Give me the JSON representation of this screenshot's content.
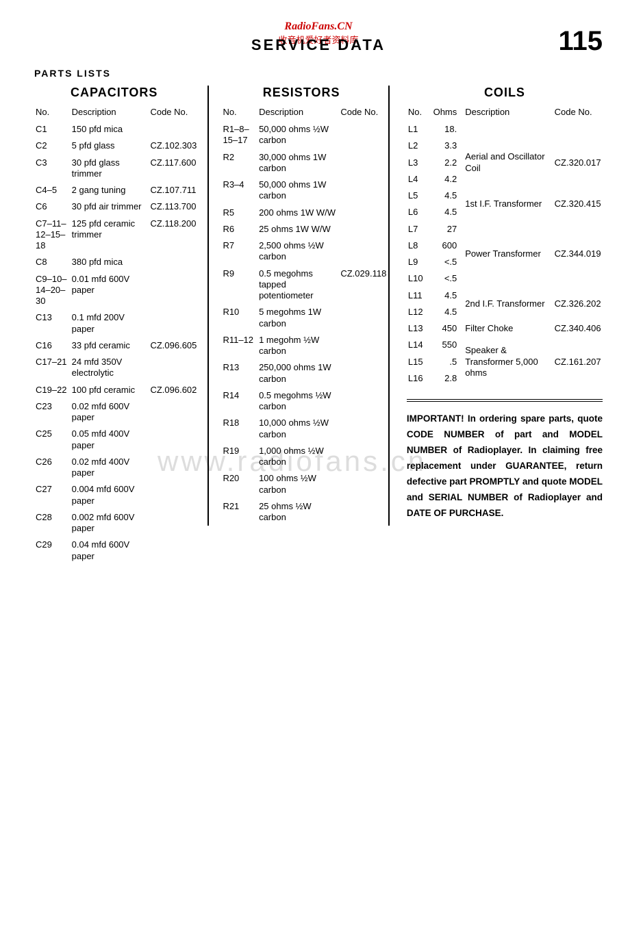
{
  "header": {
    "radiofans": "RadioFans.CN",
    "chinese": "收音机爱好者资料库",
    "service": "SERVICE DATA",
    "pagenum": "115",
    "watermark": "www.radiofans.cn"
  },
  "sectiontitle": "PARTS LISTS",
  "capheader": "CAPACITORS",
  "resheader": "RESISTORS",
  "coilheader": "COILS",
  "col_no": "No.",
  "col_desc": "Description",
  "col_code": "Code No.",
  "col_ohm": "Ohms",
  "capacitors": [
    {
      "no": "C1",
      "desc": "150 pfd mica",
      "code": ""
    },
    {
      "no": "C2",
      "desc": "5 pfd glass",
      "code": "CZ.102.303"
    },
    {
      "no": "C3",
      "desc": "30 pfd glass trimmer",
      "code": "CZ.117.600"
    },
    {
      "no": "C4–5",
      "desc": "2 gang tuning",
      "code": "CZ.107.711"
    },
    {
      "no": "C6",
      "desc": "30 pfd air trimmer",
      "code": "CZ.113.700"
    },
    {
      "no": "C7–11–12–15–18",
      "desc": "125 pfd ceramic trimmer",
      "code": "CZ.118.200"
    },
    {
      "no": "C8",
      "desc": "380 pfd mica",
      "code": ""
    },
    {
      "no": "C9–10–14–20–30",
      "desc": "0.01 mfd 600V paper",
      "code": ""
    },
    {
      "no": "C13",
      "desc": "0.1 mfd 200V paper",
      "code": ""
    },
    {
      "no": "C16",
      "desc": "33 pfd ceramic",
      "code": "CZ.096.605"
    },
    {
      "no": "C17–21",
      "desc": "24 mfd 350V electrolytic",
      "code": ""
    },
    {
      "no": "C19–22",
      "desc": "100 pfd ceramic",
      "code": "CZ.096.602"
    },
    {
      "no": "C23",
      "desc": "0.02 mfd 600V paper",
      "code": ""
    },
    {
      "no": "C25",
      "desc": "0.05 mfd 400V paper",
      "code": ""
    },
    {
      "no": "C26",
      "desc": "0.02 mfd 400V paper",
      "code": ""
    },
    {
      "no": "C27",
      "desc": "0.004 mfd 600V paper",
      "code": ""
    },
    {
      "no": "C28",
      "desc": "0.002 mfd 600V paper",
      "code": ""
    },
    {
      "no": "C29",
      "desc": "0.04 mfd 600V paper",
      "code": ""
    }
  ],
  "resistors": [
    {
      "no": "R1–8–15–17",
      "desc": "50,000 ohms ½W carbon",
      "code": ""
    },
    {
      "no": "R2",
      "desc": "30,000 ohms 1W carbon",
      "code": ""
    },
    {
      "no": "R3–4",
      "desc": "50,000 ohms 1W carbon",
      "code": ""
    },
    {
      "no": "R5",
      "desc": "200 ohms 1W W/W",
      "code": ""
    },
    {
      "no": "R6",
      "desc": "25 ohms 1W W/W",
      "code": ""
    },
    {
      "no": "R7",
      "desc": "2,500 ohms ½W carbon",
      "code": ""
    },
    {
      "no": "R9",
      "desc": "0.5 megohms tapped potentiometer",
      "code": "CZ.029.118"
    },
    {
      "no": "R10",
      "desc": "5 megohms 1W carbon",
      "code": ""
    },
    {
      "no": "R11–12",
      "desc": "1 megohm ½W carbon",
      "code": ""
    },
    {
      "no": "R13",
      "desc": "250,000 ohms 1W carbon",
      "code": ""
    },
    {
      "no": "R14",
      "desc": "0.5 megohms ½W carbon",
      "code": ""
    },
    {
      "no": "R18",
      "desc": "10,000 ohms ½W carbon",
      "code": ""
    },
    {
      "no": "R19",
      "desc": "1,000 ohms ½W carbon",
      "code": ""
    },
    {
      "no": "R20",
      "desc": "100 ohms ½W carbon",
      "code": ""
    },
    {
      "no": "R21",
      "desc": "25 ohms ½W carbon",
      "code": ""
    }
  ],
  "coils": [
    {
      "no": "L1",
      "ohm": "18.",
      "desc": "",
      "code": ""
    },
    {
      "no": "L2",
      "ohm": "3.3",
      "desc": "Aerial and Oscillator Coil",
      "code": "CZ.320.017",
      "braceTop": true
    },
    {
      "no": "L3",
      "ohm": "2.2",
      "desc": "",
      "code": ""
    },
    {
      "no": "L4",
      "ohm": "4.2",
      "desc": "",
      "code": "",
      "braceBot": true
    },
    {
      "no": "L5",
      "ohm": "4.5",
      "desc": "1st I.F. Transformer",
      "code": "CZ.320.415",
      "braceTop": true
    },
    {
      "no": "L6",
      "ohm": "4.5",
      "desc": "",
      "code": "",
      "braceBot": true
    },
    {
      "no": "L7",
      "ohm": "27",
      "desc": "",
      "code": "",
      "braceTop": true
    },
    {
      "no": "L8",
      "ohm": "600",
      "desc": "Power Transformer",
      "code": "CZ.344.019"
    },
    {
      "no": "L9",
      "ohm": "<.5",
      "desc": "",
      "code": ""
    },
    {
      "no": "L10",
      "ohm": "<.5",
      "desc": "",
      "code": "",
      "braceBot": true
    },
    {
      "no": "L11",
      "ohm": "4.5",
      "desc": "2nd I.F. Transformer",
      "code": "CZ.326.202",
      "braceTop": true
    },
    {
      "no": "L12",
      "ohm": "4.5",
      "desc": "",
      "code": "",
      "braceBot": true
    },
    {
      "no": "L13",
      "ohm": "450",
      "desc": "Filter Choke",
      "code": "CZ.340.406"
    },
    {
      "no": "L14",
      "ohm": "550",
      "desc": "",
      "code": "",
      "braceTop": true
    },
    {
      "no": "L15",
      "ohm": ".5",
      "desc": "Speaker & Transformer 5,000 ohms",
      "code": "CZ.161.207"
    },
    {
      "no": "L16",
      "ohm": "2.8",
      "desc": "",
      "code": "",
      "braceBot": true
    }
  ],
  "important": "IMPORTANT! In ordering spare parts, quote CODE NUMBER of part and MODEL NUMBER of Radioplayer. In claiming free replacement under GUARANTEE, return defective part PROMPTLY and quote MODEL and SERIAL NUMBER of Radioplayer and DATE OF PURCHASE."
}
